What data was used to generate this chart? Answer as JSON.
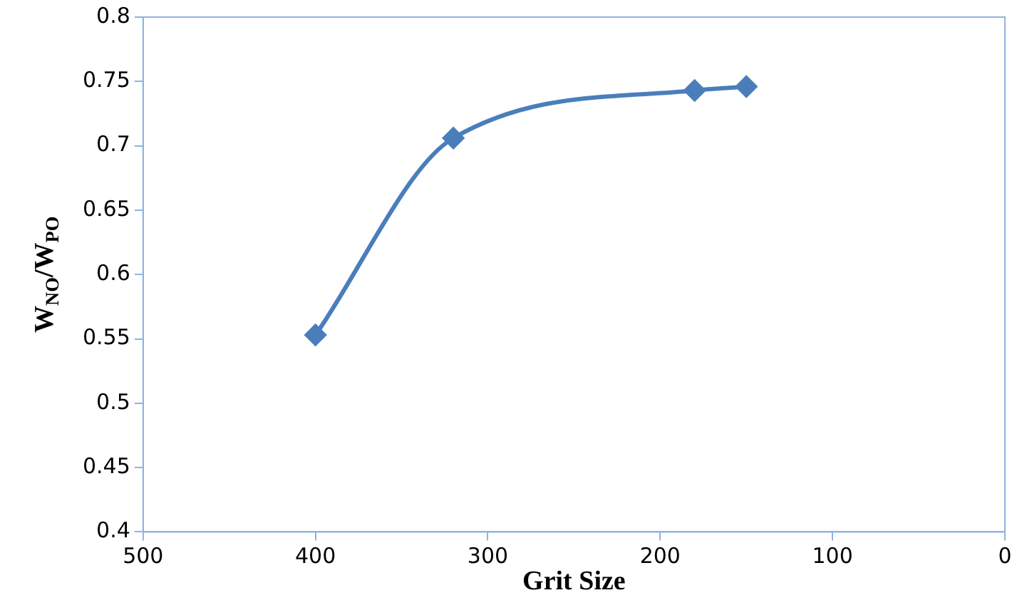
{
  "chart_data": {
    "type": "line",
    "xlabel": "Grit Size",
    "ylabel": "W$_{NO}$/W$_{PO}$",
    "x": [
      400,
      320,
      180,
      150
    ],
    "series": [
      {
        "color": "#4a7ebb",
        "values": [
          0.553,
          0.706,
          0.743,
          0.746
        ]
      }
    ],
    "xlim": [
      500,
      0
    ],
    "xticks": [
      500,
      400,
      300,
      200,
      100,
      0
    ],
    "ylim": [
      0.4,
      0.8
    ],
    "yticks": [
      0.4,
      0.45,
      0.5,
      0.55,
      0.6,
      0.65,
      0.7,
      0.75,
      0.8
    ],
    "marker": "diamond",
    "line_style": "solid",
    "grid": false,
    "legend": false
  }
}
